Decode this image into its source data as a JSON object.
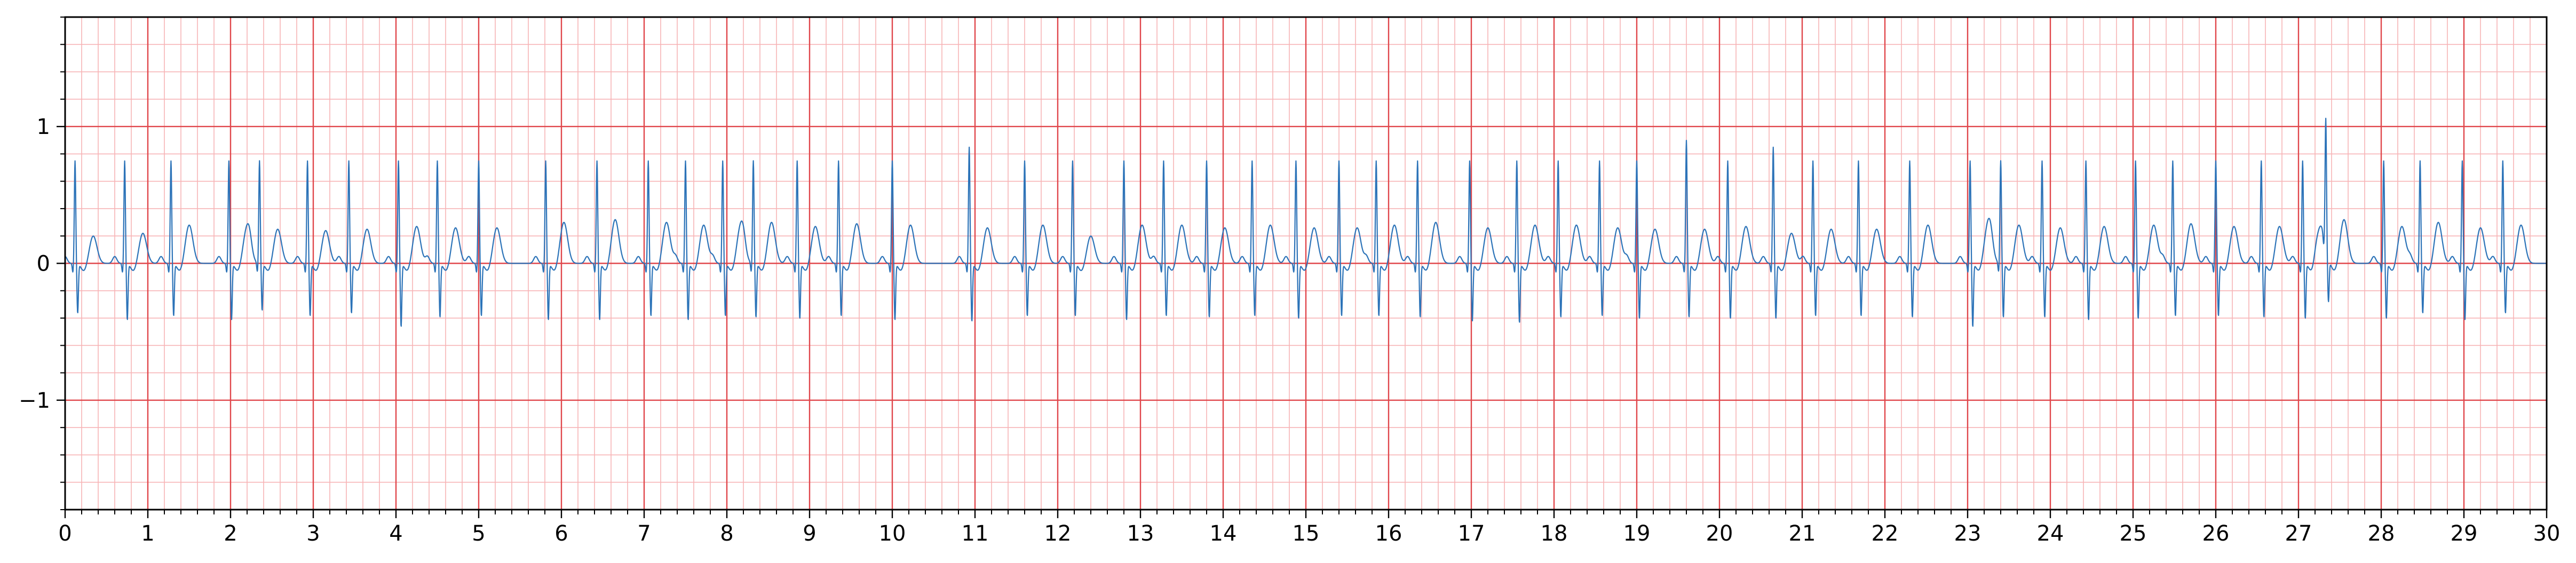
{
  "chart_data": {
    "type": "line",
    "title": "",
    "xlabel": "",
    "ylabel": "",
    "xlim": [
      0,
      30
    ],
    "ylim": [
      -1.8,
      1.8
    ],
    "x_ticks": [
      0,
      1,
      2,
      3,
      4,
      5,
      6,
      7,
      8,
      9,
      10,
      11,
      12,
      13,
      14,
      15,
      16,
      17,
      18,
      19,
      20,
      21,
      22,
      23,
      24,
      25,
      26,
      27,
      28,
      29,
      30
    ],
    "x_tick_labels": [
      "0",
      "1",
      "2",
      "3",
      "4",
      "5",
      "6",
      "7",
      "8",
      "9",
      "10",
      "11",
      "12",
      "13",
      "14",
      "15",
      "16",
      "17",
      "18",
      "19",
      "20",
      "21",
      "22",
      "23",
      "24",
      "25",
      "26",
      "27",
      "28",
      "29",
      "30"
    ],
    "y_ticks": [
      -1,
      0,
      1
    ],
    "y_tick_labels": [
      "−1",
      "0",
      "1"
    ],
    "grid": {
      "major": true,
      "minor": true,
      "major_x_step": 1,
      "major_y_step": 1,
      "minor_x_step": 0.2,
      "minor_y_step": 0.2,
      "major_color": "#e0464b",
      "minor_color": "#f7b4b6"
    },
    "line_color": "#2c73b8",
    "series": [
      {
        "name": "",
        "signal": "ECG",
        "beat_times": [
          0.12,
          0.72,
          1.28,
          1.98,
          2.35,
          2.93,
          3.43,
          4.03,
          4.5,
          5.0,
          5.81,
          6.43,
          7.05,
          7.5,
          7.95,
          8.32,
          8.85,
          9.35,
          10.0,
          10.93,
          11.6,
          12.18,
          12.8,
          13.28,
          13.8,
          14.35,
          14.88,
          15.4,
          15.85,
          16.35,
          16.98,
          17.55,
          18.05,
          18.55,
          19.0,
          19.6,
          20.1,
          20.65,
          21.13,
          21.68,
          22.3,
          23.03,
          23.4,
          23.9,
          24.43,
          25.03,
          25.48,
          26.0,
          26.55,
          27.05,
          27.33,
          28.03,
          28.47,
          28.98,
          29.47
        ],
        "r_amplitude": [
          0.7,
          0.7,
          0.7,
          0.7,
          0.7,
          0.7,
          0.7,
          0.7,
          0.7,
          0.7,
          0.7,
          0.7,
          0.7,
          0.7,
          0.7,
          0.7,
          0.7,
          0.7,
          0.7,
          0.8,
          0.7,
          0.7,
          0.7,
          0.7,
          0.7,
          0.7,
          0.7,
          0.7,
          0.7,
          0.7,
          0.7,
          0.7,
          0.7,
          0.7,
          0.7,
          0.85,
          0.7,
          0.8,
          0.7,
          0.7,
          0.7,
          0.7,
          0.7,
          0.7,
          0.7,
          0.7,
          0.7,
          0.7,
          0.7,
          0.7,
          0.9,
          0.7,
          0.7,
          0.7,
          0.7
        ],
        "s_depth": [
          -0.4,
          -0.45,
          -0.42,
          -0.45,
          -0.38,
          -0.42,
          -0.4,
          -0.5,
          -0.43,
          -0.42,
          -0.45,
          -0.45,
          -0.42,
          -0.45,
          -0.42,
          -0.43,
          -0.44,
          -0.42,
          -0.45,
          -0.46,
          -0.42,
          -0.42,
          -0.45,
          -0.42,
          -0.43,
          -0.42,
          -0.44,
          -0.42,
          -0.42,
          -0.43,
          -0.46,
          -0.47,
          -0.43,
          -0.42,
          -0.44,
          -0.43,
          -0.44,
          -0.44,
          -0.42,
          -0.42,
          -0.43,
          -0.5,
          -0.43,
          -0.43,
          -0.45,
          -0.44,
          -0.42,
          -0.42,
          -0.43,
          -0.44,
          -0.35,
          -0.44,
          -0.4,
          -0.45,
          -0.4
        ],
        "t_amplitude": [
          0.2,
          0.22,
          0.28,
          0.26,
          0.25,
          0.24,
          0.25,
          0.27,
          0.26,
          0.26,
          0.3,
          0.32,
          0.3,
          0.28,
          0.28,
          0.3,
          0.27,
          0.29,
          0.28,
          0.26,
          0.28,
          0.2,
          0.28,
          0.28,
          0.26,
          0.28,
          0.26,
          0.26,
          0.28,
          0.3,
          0.26,
          0.28,
          0.28,
          0.26,
          0.25,
          0.25,
          0.27,
          0.22,
          0.25,
          0.25,
          0.28,
          0.3,
          0.28,
          0.26,
          0.27,
          0.28,
          0.29,
          0.27,
          0.27,
          0.27,
          0.32,
          0.27,
          0.3,
          0.26,
          0.28
        ]
      }
    ]
  }
}
